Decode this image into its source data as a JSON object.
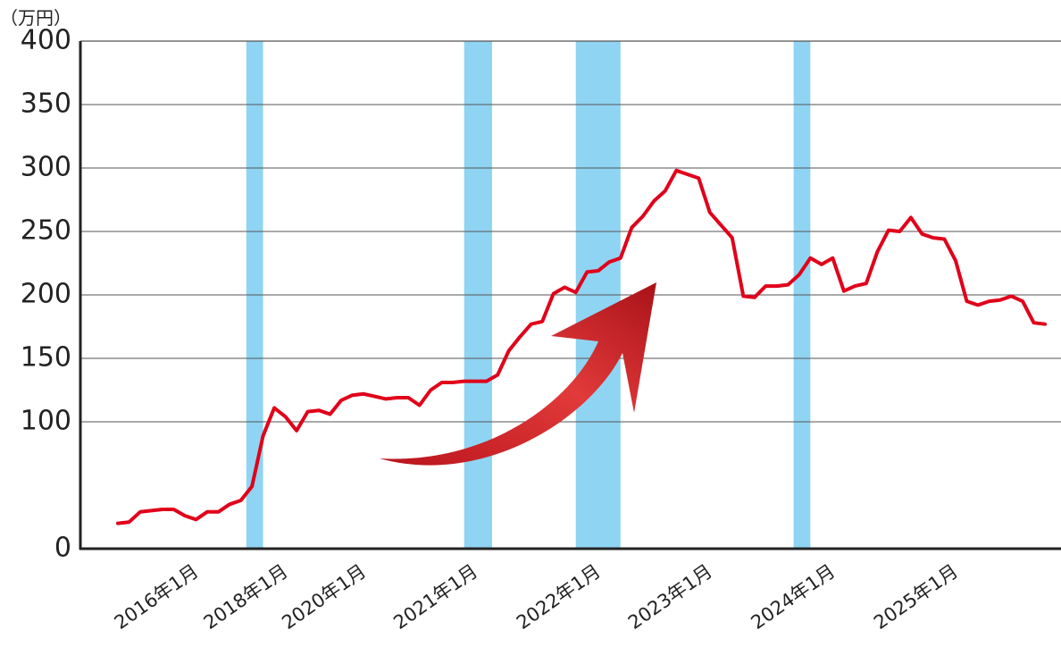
{
  "chart_data": {
    "type": "line",
    "unit_label": "（万円）",
    "ylim": [
      0,
      400
    ],
    "y_ticks": [
      "0",
      "100",
      "150",
      "200",
      "250",
      "300",
      "350",
      "400"
    ],
    "y_tick_values": [
      0,
      100,
      150,
      200,
      250,
      300,
      350,
      400
    ],
    "grid": true,
    "x_tick_labels": [
      {
        "label": "2016年1月",
        "index": 6
      },
      {
        "label": "2018年1月",
        "index": 14
      },
      {
        "label": "2020年1月",
        "index": 21
      },
      {
        "label": "2021年1月",
        "index": 31
      },
      {
        "label": "2022年1月",
        "index": 42
      },
      {
        "label": "2023年1月",
        "index": 52
      },
      {
        "label": "2024年1月",
        "index": 63
      },
      {
        "label": "2025年1月",
        "index": 74
      }
    ],
    "highlight_bands": [
      {
        "start": 11.5,
        "end": 13.0
      },
      {
        "start": 31.0,
        "end": 33.5
      },
      {
        "start": 41.0,
        "end": 45.0
      },
      {
        "start": 60.5,
        "end": 62.0
      }
    ],
    "band_color": "#8fd4f2",
    "line_color": "#e0001a",
    "arrow_color": "#d42a2a",
    "series": [
      {
        "values": [
          20,
          21,
          29,
          30,
          31,
          31,
          26,
          23,
          29,
          29,
          35,
          38,
          49,
          89,
          111,
          104,
          93,
          108,
          109,
          106,
          117,
          121,
          122,
          120,
          118,
          119,
          119,
          113,
          125,
          131,
          131,
          132,
          132,
          132,
          137,
          156,
          167,
          177,
          179,
          201,
          206,
          202,
          218,
          219,
          226,
          229,
          253,
          262,
          274,
          282,
          298,
          295,
          292,
          265,
          255,
          245,
          199,
          198,
          207,
          207,
          208,
          216,
          229,
          224,
          229,
          203,
          207,
          209,
          234,
          251,
          250,
          261,
          248,
          245,
          244,
          227,
          195,
          192,
          195,
          196,
          199,
          195,
          178,
          177
        ]
      }
    ]
  }
}
